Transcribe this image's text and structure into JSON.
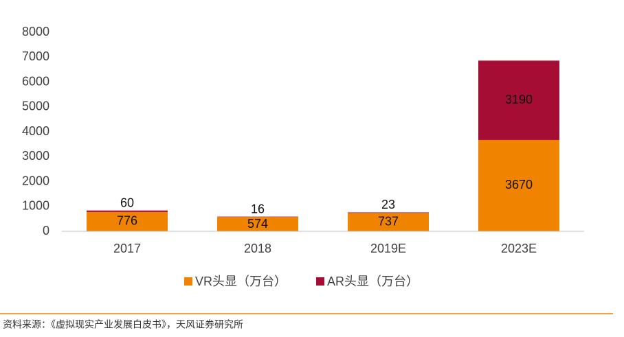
{
  "chart_data": {
    "type": "stacked_bar",
    "categories": [
      "2017",
      "2018",
      "2019E",
      "2023E"
    ],
    "series": [
      {
        "name": "VR头显（万台）",
        "color": "#f08300",
        "values": [
          776,
          574,
          737,
          3670
        ]
      },
      {
        "name": "AR头显（万台）",
        "color": "#a50d35",
        "values": [
          60,
          16,
          23,
          3190
        ]
      }
    ],
    "ylim": [
      0,
      8000
    ],
    "yticks": [
      0,
      1000,
      2000,
      3000,
      4000,
      5000,
      6000,
      7000,
      8000
    ],
    "grid": false,
    "legend": "bottom",
    "source": "资料来源：《虚拟现实产业发展白皮书》，天风证券研究所"
  }
}
